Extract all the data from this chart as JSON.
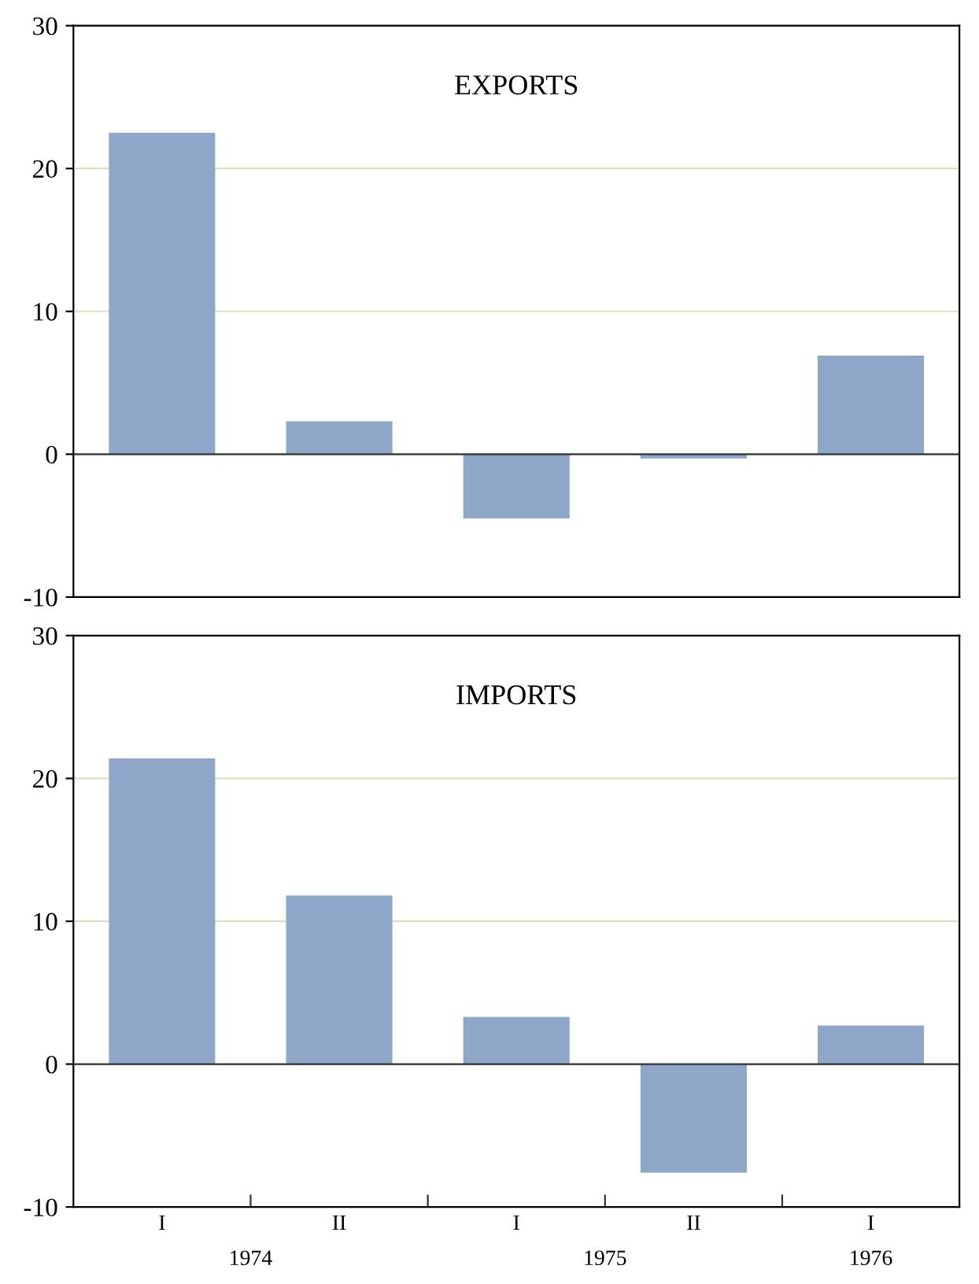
{
  "chart_data": [
    {
      "type": "bar",
      "title": "EXPORTS",
      "categories": [
        null,
        null,
        null,
        null,
        null
      ],
      "values": [
        22.5,
        2.3,
        -4.5,
        -0.3,
        6.9
      ],
      "color": "#8ea7c9",
      "ylim": [
        -10,
        30
      ],
      "yticks": [
        -10,
        0,
        10,
        20,
        30
      ],
      "grid": "y",
      "tick_labels": "y"
    },
    {
      "type": "bar",
      "title": "IMPORTS",
      "categories": [
        "I",
        "II",
        "I",
        "II",
        "I"
      ],
      "values": [
        21.4,
        11.8,
        3.3,
        -7.6,
        2.7
      ],
      "color": "#8ea7c9",
      "ylim": [
        -10,
        30
      ],
      "yticks": [
        -10,
        0,
        10,
        20,
        30
      ],
      "grid": "y",
      "annotations": [
        "1974",
        "1975",
        "1976"
      ]
    }
  ]
}
